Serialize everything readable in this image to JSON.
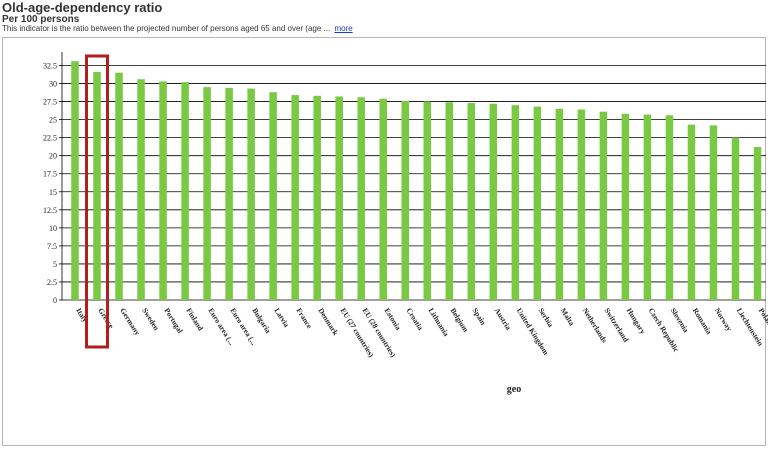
{
  "header": {
    "title": "Old-age-dependency ratio",
    "subtitle": "Per 100 persons",
    "description": "This indicator is the ratio between the projected number of persons aged 65 and over (age ...",
    "more_label": "more"
  },
  "highlight_category": "Greece",
  "colors": {
    "bar": "#7ac943",
    "highlight": "#b21e1e",
    "grid": "#000000"
  },
  "chart_data": {
    "type": "bar",
    "title": "",
    "xlabel": "geo",
    "ylabel": "",
    "ylim": [
      0,
      35
    ],
    "yticks": [
      "0",
      "2.5",
      "5",
      "7.5",
      "10",
      "12.5",
      "15",
      "17.5",
      "20",
      "22.5",
      "25",
      "27.5",
      "30",
      "32.5"
    ],
    "grid": true,
    "categories": [
      "Italy",
      "Greece",
      "Germany",
      "Sweden",
      "Portugal",
      "Finland",
      "Euro area (...",
      "Euro area (...",
      "Bulgaria",
      "Latvia",
      "France",
      "Denmark",
      "EU (27 countries)",
      "EU (28 countries)",
      "Estonia",
      "Croatia",
      "Lithuania",
      "Belgium",
      "Spain",
      "Austria",
      "United Kingdom",
      "Serbia",
      "Malta",
      "Netherlands",
      "Switzerland",
      "Hungary",
      "Czech Republic",
      "Slovenia",
      "Romania",
      "Norway",
      "Liechtenstein",
      "Poland"
    ],
    "values": [
      33.1,
      31.6,
      31.5,
      30.6,
      30.3,
      30.2,
      29.5,
      29.4,
      29.3,
      28.8,
      28.4,
      28.3,
      28.2,
      28.1,
      27.9,
      27.6,
      27.5,
      27.4,
      27.3,
      27.2,
      27.0,
      26.8,
      26.5,
      26.4,
      26.1,
      25.8,
      25.7,
      25.6,
      24.3,
      24.2,
      22.5,
      21.2
    ]
  }
}
